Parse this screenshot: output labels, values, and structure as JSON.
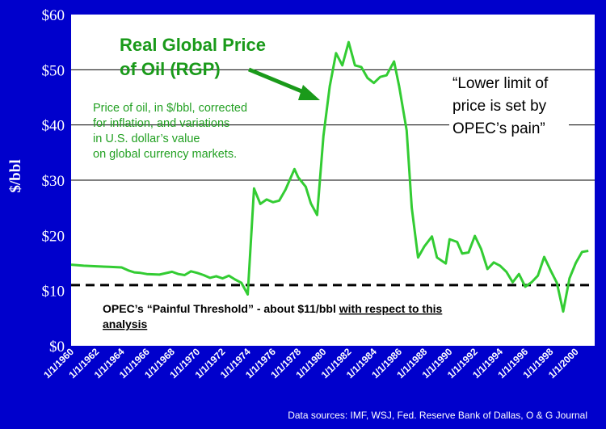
{
  "colors": {
    "background": "#0000cc",
    "plot_area": "#ffffff",
    "line": "#33cc33",
    "title_text": "#1a9a1a",
    "gridline": "#000000"
  },
  "annotations": {
    "title_line1": "Real Global Price",
    "title_line2": "of Oil (RGP)",
    "desc_line1": "Price of oil, in $/bbl, corrected",
    "desc_line2": "for inflation, and variations",
    "desc_line3": "in U.S. dollar’s value",
    "desc_line4": "on global currency markets.",
    "quote_line1": "“Lower limit of",
    "quote_line2": "price is set by",
    "quote_line3": "OPEC’s pain”",
    "threshold_text": "OPEC’s “Painful Threshold” - about $11/bbl ",
    "threshold_underlined_1": "with respect to this",
    "threshold_underlined_2": "analysis",
    "source": "Data sources: IMF, WSJ, Fed. Reserve Bank of Dallas, O & G Journal"
  },
  "chart_data": {
    "type": "line",
    "title": "Real Global Price of Oil (RGP)",
    "xlabel": "",
    "ylabel": "$/bbl",
    "ylim": [
      0,
      60
    ],
    "yticks": [
      {
        "value": 0,
        "label": "$0"
      },
      {
        "value": 10,
        "label": "$10"
      },
      {
        "value": 20,
        "label": "$20"
      },
      {
        "value": 30,
        "label": "$30"
      },
      {
        "value": 40,
        "label": "$40"
      },
      {
        "value": 50,
        "label": "$50"
      },
      {
        "value": 60,
        "label": "$60"
      }
    ],
    "xlim": [
      1960,
      2001.5
    ],
    "xticks": [
      {
        "value": 1960,
        "label": "1/1/1960"
      },
      {
        "value": 1962,
        "label": "1/1/1962"
      },
      {
        "value": 1964,
        "label": "1/1/1964"
      },
      {
        "value": 1966,
        "label": "1/1/1966"
      },
      {
        "value": 1968,
        "label": "1/1/1968"
      },
      {
        "value": 1970,
        "label": "1/1/1970"
      },
      {
        "value": 1972,
        "label": "1/1/1972"
      },
      {
        "value": 1974,
        "label": "1/1/1974"
      },
      {
        "value": 1976,
        "label": "1/1/1976"
      },
      {
        "value": 1978,
        "label": "1/1/1978"
      },
      {
        "value": 1980,
        "label": "1/1/1980"
      },
      {
        "value": 1982,
        "label": "1/1/1982"
      },
      {
        "value": 1984,
        "label": "1/1/1984"
      },
      {
        "value": 1986,
        "label": "1/1/1986"
      },
      {
        "value": 1988,
        "label": "1/1/1988"
      },
      {
        "value": 1990,
        "label": "1/1/1990"
      },
      {
        "value": 1992,
        "label": "1/1/1992"
      },
      {
        "value": 1994,
        "label": "1/1/1994"
      },
      {
        "value": 1996,
        "label": "1/1/1996"
      },
      {
        "value": 1998,
        "label": "1/1/1998"
      },
      {
        "value": 2000,
        "label": "1/1/2000"
      }
    ],
    "gridlines": [
      30,
      40,
      50
    ],
    "threshold": 11,
    "series": [
      {
        "name": "Real Global Price of Oil (RGP)",
        "x": [
          1960,
          1961,
          1962,
          1963,
          1964,
          1964.6,
          1965,
          1965.5,
          1966,
          1967,
          1968,
          1968.5,
          1969,
          1969.5,
          1970,
          1970.5,
          1971,
          1971.5,
          1972,
          1972.5,
          1973,
          1973.5,
          1974,
          1974.5,
          1975,
          1975.5,
          1976,
          1976.5,
          1977,
          1977.7,
          1978,
          1978.6,
          1979,
          1979.5,
          1980,
          1980.5,
          1981,
          1981.5,
          1982,
          1982.5,
          1983,
          1983.5,
          1984,
          1984.5,
          1985,
          1985.6,
          1986,
          1986.6,
          1987,
          1987.5,
          1988,
          1988.6,
          1989,
          1989.7,
          1990,
          1990.6,
          1991,
          1991.5,
          1992,
          1992.5,
          1993,
          1993.5,
          1994,
          1994.5,
          1995,
          1995.5,
          1996,
          1996.5,
          1997,
          1997.5,
          1998,
          1998.5,
          1999,
          1999.5,
          2000,
          2000.5,
          2001
        ],
        "y": [
          14.7,
          14.5,
          14.4,
          14.3,
          14.2,
          13.6,
          13.3,
          13.2,
          13.0,
          12.9,
          13.4,
          13.0,
          12.8,
          13.5,
          13.2,
          12.8,
          12.3,
          12.6,
          12.2,
          12.7,
          12.0,
          11.4,
          9.3,
          28.5,
          25.7,
          26.5,
          26.0,
          26.3,
          28.3,
          32.0,
          30.5,
          28.8,
          25.8,
          23.7,
          38.0,
          47.0,
          53.0,
          50.8,
          55.0,
          50.8,
          50.5,
          48.5,
          47.6,
          48.7,
          49.0,
          51.5,
          47.0,
          39.0,
          25.0,
          16.0,
          18.0,
          19.8,
          16.0,
          14.9,
          19.3,
          18.8,
          16.7,
          16.9,
          19.9,
          17.5,
          13.9,
          15.1,
          14.5,
          13.4,
          11.5,
          13.0,
          10.7,
          11.5,
          12.7,
          16.1,
          13.7,
          11.4,
          6.2,
          12.2,
          15.0,
          17.0,
          17.2
        ]
      }
    ]
  }
}
